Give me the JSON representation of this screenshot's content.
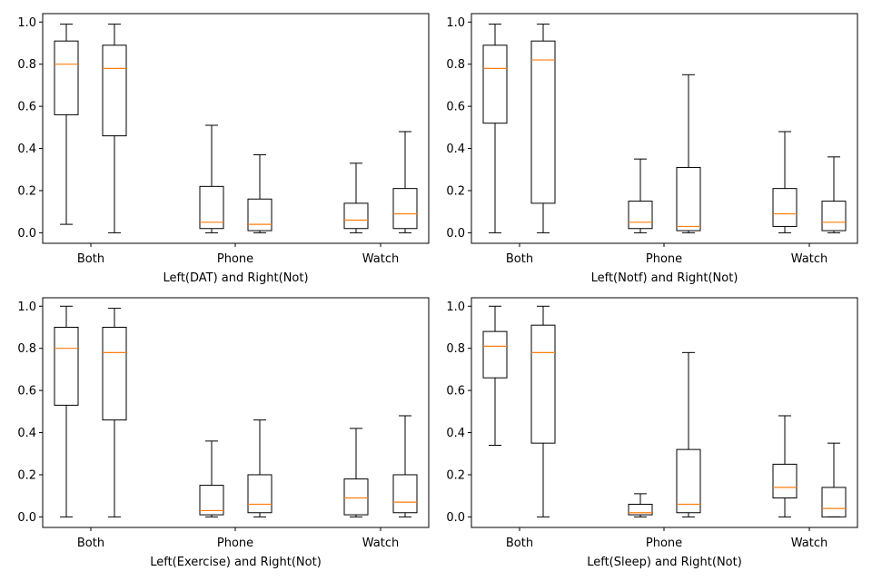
{
  "colors": {
    "box": "#000000",
    "median": "#ff7f0e",
    "background": "#ffffff"
  },
  "chart_data": [
    {
      "type": "box",
      "xlabel": "Left(DAT) and Right(Not)",
      "ylabel": "",
      "categories": [
        "Both",
        "Phone",
        "Watch"
      ],
      "ylim": [
        -0.05,
        1.04
      ],
      "yticks": [
        "0.0",
        "0.2",
        "0.4",
        "0.6",
        "0.8",
        "1.0"
      ],
      "grid": false,
      "boxes": [
        {
          "category": "Both",
          "side": "left",
          "whislo": 0.04,
          "q1": 0.56,
          "med": 0.8,
          "q3": 0.91,
          "whishi": 0.99
        },
        {
          "category": "Both",
          "side": "right",
          "whislo": 0.0,
          "q1": 0.46,
          "med": 0.78,
          "q3": 0.89,
          "whishi": 0.99
        },
        {
          "category": "Phone",
          "side": "left",
          "whislo": 0.0,
          "q1": 0.02,
          "med": 0.05,
          "q3": 0.22,
          "whishi": 0.51
        },
        {
          "category": "Phone",
          "side": "right",
          "whislo": 0.0,
          "q1": 0.01,
          "med": 0.04,
          "q3": 0.16,
          "whishi": 0.37
        },
        {
          "category": "Watch",
          "side": "left",
          "whislo": 0.0,
          "q1": 0.02,
          "med": 0.06,
          "q3": 0.14,
          "whishi": 0.33
        },
        {
          "category": "Watch",
          "side": "right",
          "whislo": 0.0,
          "q1": 0.02,
          "med": 0.09,
          "q3": 0.21,
          "whishi": 0.48
        }
      ]
    },
    {
      "type": "box",
      "xlabel": "Left(Notf) and Right(Not)",
      "ylabel": "",
      "categories": [
        "Both",
        "Phone",
        "Watch"
      ],
      "ylim": [
        -0.05,
        1.04
      ],
      "yticks": [
        "0.0",
        "0.2",
        "0.4",
        "0.6",
        "0.8",
        "1.0"
      ],
      "grid": false,
      "boxes": [
        {
          "category": "Both",
          "side": "left",
          "whislo": 0.0,
          "q1": 0.52,
          "med": 0.78,
          "q3": 0.89,
          "whishi": 0.99
        },
        {
          "category": "Both",
          "side": "right",
          "whislo": 0.0,
          "q1": 0.14,
          "med": 0.82,
          "q3": 0.91,
          "whishi": 0.99
        },
        {
          "category": "Phone",
          "side": "left",
          "whislo": 0.0,
          "q1": 0.02,
          "med": 0.05,
          "q3": 0.15,
          "whishi": 0.35
        },
        {
          "category": "Phone",
          "side": "right",
          "whislo": 0.0,
          "q1": 0.01,
          "med": 0.03,
          "q3": 0.31,
          "whishi": 0.75
        },
        {
          "category": "Watch",
          "side": "left",
          "whislo": 0.0,
          "q1": 0.03,
          "med": 0.09,
          "q3": 0.21,
          "whishi": 0.48
        },
        {
          "category": "Watch",
          "side": "right",
          "whislo": 0.0,
          "q1": 0.01,
          "med": 0.05,
          "q3": 0.15,
          "whishi": 0.36
        }
      ]
    },
    {
      "type": "box",
      "xlabel": "Left(Exercise) and Right(Not)",
      "ylabel": "",
      "categories": [
        "Both",
        "Phone",
        "Watch"
      ],
      "ylim": [
        -0.05,
        1.04
      ],
      "yticks": [
        "0.0",
        "0.2",
        "0.4",
        "0.6",
        "0.8",
        "1.0"
      ],
      "grid": false,
      "boxes": [
        {
          "category": "Both",
          "side": "left",
          "whislo": 0.0,
          "q1": 0.53,
          "med": 0.8,
          "q3": 0.9,
          "whishi": 1.0
        },
        {
          "category": "Both",
          "side": "right",
          "whislo": 0.0,
          "q1": 0.46,
          "med": 0.78,
          "q3": 0.9,
          "whishi": 0.99
        },
        {
          "category": "Phone",
          "side": "left",
          "whislo": 0.0,
          "q1": 0.01,
          "med": 0.03,
          "q3": 0.15,
          "whishi": 0.36
        },
        {
          "category": "Phone",
          "side": "right",
          "whislo": 0.0,
          "q1": 0.02,
          "med": 0.06,
          "q3": 0.2,
          "whishi": 0.46
        },
        {
          "category": "Watch",
          "side": "left",
          "whislo": 0.0,
          "q1": 0.01,
          "med": 0.09,
          "q3": 0.18,
          "whishi": 0.42
        },
        {
          "category": "Watch",
          "side": "right",
          "whislo": 0.0,
          "q1": 0.02,
          "med": 0.07,
          "q3": 0.2,
          "whishi": 0.48
        }
      ]
    },
    {
      "type": "box",
      "xlabel": "Left(Sleep) and Right(Not)",
      "ylabel": "",
      "categories": [
        "Both",
        "Phone",
        "Watch"
      ],
      "ylim": [
        -0.05,
        1.04
      ],
      "yticks": [
        "0.0",
        "0.2",
        "0.4",
        "0.6",
        "0.8",
        "1.0"
      ],
      "grid": false,
      "boxes": [
        {
          "category": "Both",
          "side": "left",
          "whislo": 0.34,
          "q1": 0.66,
          "med": 0.81,
          "q3": 0.88,
          "whishi": 1.0
        },
        {
          "category": "Both",
          "side": "right",
          "whislo": 0.0,
          "q1": 0.35,
          "med": 0.78,
          "q3": 0.91,
          "whishi": 1.0
        },
        {
          "category": "Phone",
          "side": "left",
          "whislo": 0.0,
          "q1": 0.01,
          "med": 0.02,
          "q3": 0.06,
          "whishi": 0.11
        },
        {
          "category": "Phone",
          "side": "right",
          "whislo": 0.0,
          "q1": 0.02,
          "med": 0.06,
          "q3": 0.32,
          "whishi": 0.78
        },
        {
          "category": "Watch",
          "side": "left",
          "whislo": 0.0,
          "q1": 0.09,
          "med": 0.14,
          "q3": 0.25,
          "whishi": 0.48
        },
        {
          "category": "Watch",
          "side": "right",
          "whislo": 0.0,
          "q1": 0.0,
          "med": 0.04,
          "q3": 0.14,
          "whishi": 0.35
        }
      ]
    }
  ]
}
